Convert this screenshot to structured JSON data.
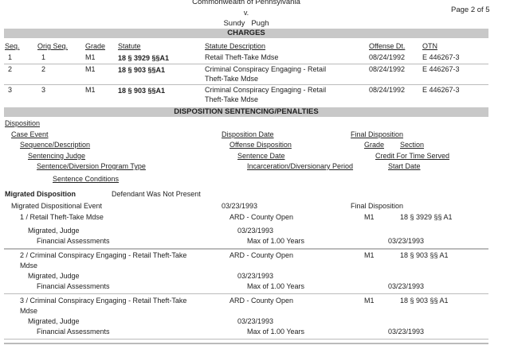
{
  "header": {
    "court_line": "Commonwealth of Pennsylvania",
    "versus": "v.",
    "defendant": "Sundy   Pugh",
    "page": "Page 2 of 5"
  },
  "charges": {
    "title": "CHARGES",
    "columns": [
      "Seq.",
      "Orig Seq.",
      "Grade",
      "Statute",
      "Statute Description",
      "Offense Dt.",
      "OTN"
    ],
    "rows": [
      {
        "seq": "1",
        "orig": "1",
        "grade": "M1",
        "statute": "18 § 3929  §§A1",
        "desc1": "Retail Theft-Take Mdse",
        "desc2": "",
        "date": "08/24/1992",
        "otn": "E 446267-3"
      },
      {
        "seq": "2",
        "orig": "2",
        "grade": "M1",
        "statute": "18 § 903  §§A1",
        "desc1": "Criminal Conspiracy Engaging - Retail",
        "desc2": "Theft-Take Mdse",
        "date": "08/24/1992",
        "otn": "E 446267-3"
      },
      {
        "seq": "3",
        "orig": "3",
        "grade": "M1",
        "statute": "18 § 903  §§A1",
        "desc1": "Criminal Conspiracy Engaging - Retail",
        "desc2": "Theft-Take Mdse",
        "date": "08/24/1992",
        "otn": "E 446267-3"
      }
    ]
  },
  "disposition": {
    "title": "DISPOSITION SENTENCING/PENALTIES",
    "legend": {
      "disposition": "Disposition",
      "case_event": "Case Event",
      "seq_desc": "Sequence/Description",
      "judge": "Sentencing Judge",
      "program_type": "Sentence/Diversion Program Type",
      "conditions": "Sentence Conditions",
      "disp_date": "Disposition Date",
      "offense_disp": "Offense Disposition",
      "sentence_date": "Sentence Date",
      "period": "Incarceration/Diversionary Period",
      "final_disp": "Final Disposition",
      "grade": "Grade",
      "section": "Section",
      "credit": "Credit For Time Served",
      "start_date": "Start Date"
    },
    "migrated": {
      "label": "Migrated Disposition",
      "presence": "Defendant Was Not Present",
      "event": "Migrated Dispositional Event",
      "event_date": "03/23/1993",
      "final": "Final Disposition"
    },
    "rows": [
      {
        "desc1": "1 / Retail Theft-Take Mdse",
        "desc2": "",
        "offense_disp": "ARD - County Open",
        "grade": "M1",
        "section": "18 § 3929 §§ A1",
        "judge": "Migrated, Judge",
        "sentence_date": "03/23/1993",
        "program": "Financial Assessments",
        "period": "Max of 1.00 Years",
        "start": "03/23/1993"
      },
      {
        "desc1": "2 / Criminal Conspiracy Engaging - Retail Theft-Take",
        "desc2": "Mdse",
        "offense_disp": "ARD - County Open",
        "grade": "M1",
        "section": "18 § 903 §§ A1",
        "judge": "Migrated, Judge",
        "sentence_date": "03/23/1993",
        "program": "Financial Assessments",
        "period": "Max of 1.00 Years",
        "start": "03/23/1993"
      },
      {
        "desc1": "3 / Criminal Conspiracy Engaging - Retail Theft-Take",
        "desc2": "Mdse",
        "offense_disp": "ARD - County Open",
        "grade": "M1",
        "section": "18 § 903 §§ A1",
        "judge": "Migrated, Judge",
        "sentence_date": "03/23/1993",
        "program": "Financial Assessments",
        "period": "Max of 1.00 Years",
        "start": "03/23/1993"
      }
    ]
  }
}
